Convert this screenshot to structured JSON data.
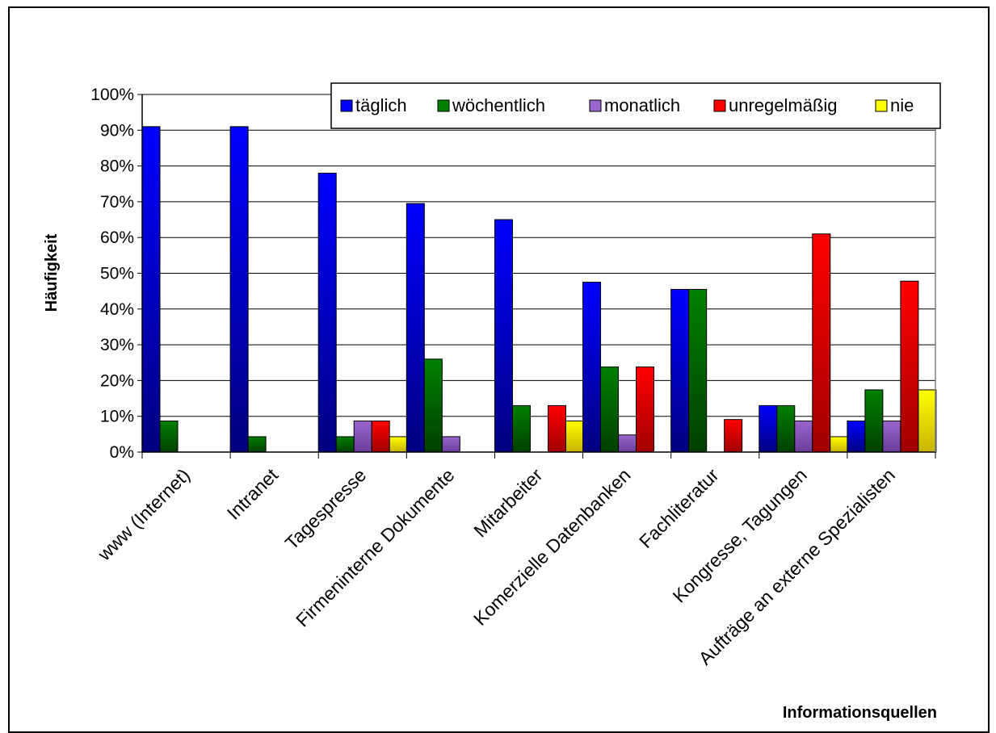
{
  "chart_data": {
    "type": "bar",
    "ylabel": "Häufigkeit",
    "xlabel": "Informationsquellen",
    "ylim": [
      0,
      100
    ],
    "y_ticks": [
      "0%",
      "10%",
      "20%",
      "30%",
      "40%",
      "50%",
      "60%",
      "70%",
      "80%",
      "90%",
      "100%"
    ],
    "categories": [
      "www (Internet)",
      "Intranet",
      "Tagespresse",
      "Firmeninterne Dokumente",
      "Mitarbeiter",
      "Komerzielle Datenbanken",
      "Fachliteratur",
      "Kongresse, Tagungen",
      "Aufträge an externe Spezialisten"
    ],
    "series": [
      {
        "name": "täglich",
        "color": "#0000ff",
        "values": [
          91,
          91,
          78,
          69.5,
          65,
          47.5,
          45.5,
          13,
          8.7
        ]
      },
      {
        "name": "wöchentlich",
        "color": "#008000",
        "values": [
          8.7,
          4.3,
          4.3,
          26,
          13,
          23.8,
          45.5,
          13,
          17.4
        ]
      },
      {
        "name": "monatlich",
        "color": "#9966cc",
        "values": [
          0,
          0,
          8.7,
          4.3,
          0,
          4.8,
          0,
          8.7,
          8.7
        ]
      },
      {
        "name": "unregelmäßig",
        "color": "#ff0000",
        "values": [
          0,
          0,
          8.7,
          0,
          13,
          23.8,
          9.1,
          61,
          47.8
        ]
      },
      {
        "name": "nie",
        "color": "#ffff00",
        "values": [
          0,
          0,
          4.3,
          0,
          8.7,
          0,
          0,
          4.3,
          17.4
        ]
      }
    ],
    "legend_position": "top-right",
    "grid": true
  }
}
